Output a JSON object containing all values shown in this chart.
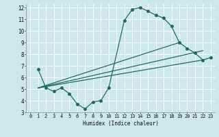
{
  "xlabel": "Humidex (Indice chaleur)",
  "xlim": [
    -0.5,
    23.5
  ],
  "ylim": [
    3,
    12.3
  ],
  "yticks": [
    3,
    4,
    5,
    6,
    7,
    8,
    9,
    10,
    11,
    12
  ],
  "xticks": [
    0,
    1,
    2,
    3,
    4,
    5,
    6,
    7,
    8,
    9,
    10,
    11,
    12,
    13,
    14,
    15,
    16,
    17,
    18,
    19,
    20,
    21,
    22,
    23
  ],
  "bg_color": "#cce8e8",
  "line_color": "#1e6b5e",
  "grid_color": "#ffffff",
  "curve1_x": [
    1,
    2,
    3,
    4,
    5,
    6,
    7,
    8,
    9,
    10,
    12,
    13,
    14,
    15,
    16,
    17,
    18,
    19,
    20,
    21,
    22,
    23
  ],
  "curve1_y": [
    6.7,
    5.1,
    4.8,
    5.1,
    4.6,
    3.7,
    3.3,
    3.9,
    4.0,
    5.1,
    10.9,
    11.85,
    12.0,
    11.7,
    11.35,
    11.1,
    10.4,
    9.0,
    8.5,
    8.1,
    7.5,
    7.7
  ],
  "curve2_x": [
    1,
    22
  ],
  "curve2_y": [
    5.1,
    7.5
  ],
  "curve3_x": [
    1,
    22
  ],
  "curve3_y": [
    5.1,
    8.3
  ],
  "curve4_x": [
    1,
    19
  ],
  "curve4_y": [
    5.1,
    9.0
  ]
}
